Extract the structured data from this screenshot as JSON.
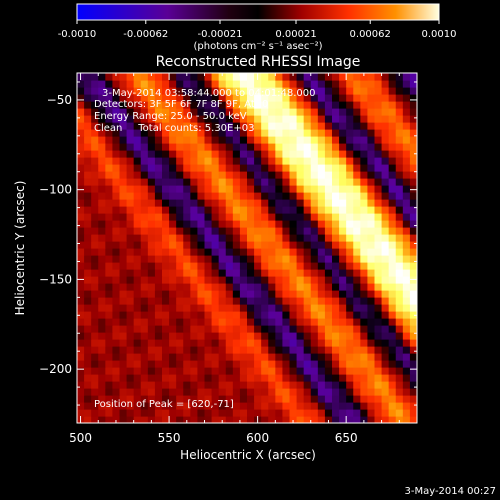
{
  "chart_data": {
    "type": "heatmap",
    "title": "Reconstructed RHESSI Image",
    "xlabel": "Heliocentric X (arcsec)",
    "ylabel": "Heliocentric Y (arcsec)",
    "xlim": [
      498,
      690
    ],
    "ylim": [
      -230,
      -35
    ],
    "xticks": [
      500,
      550,
      600,
      650
    ],
    "yticks": [
      -50,
      -100,
      -150,
      -200
    ],
    "colorbar": {
      "ticks": [
        "-0.0010",
        "-0.00062",
        "-0.00021",
        "0.00021",
        "0.00062",
        "0.0010"
      ],
      "range": [
        -0.001,
        0.001
      ],
      "units_label": "(photons cm⁻² s⁻¹ asec⁻²)"
    },
    "annotations": [
      "3-May-2014 03:58:44.000 to 04:01:48.000",
      "Detectors: 3F 5F 6F 7F 8F 9F, Att 0",
      "Energy Range: 25.0 - 50.0 keV",
      "Clean     Total counts: 5.30E+03"
    ],
    "peak_label": "Position of Peak = [620,-71]",
    "peak": {
      "x": 620,
      "y": -71
    },
    "timestamp": "3-May-2014 00:27",
    "bands": [
      {
        "center_offset": 0,
        "width": 26,
        "amplitude": 0.00095
      },
      {
        "center_offset": -60,
        "width": 14,
        "amplitude": 0.00045
      },
      {
        "center_offset": 62,
        "width": 14,
        "amplitude": 0.0004
      },
      {
        "center_offset": 120,
        "width": 12,
        "amplitude": 0.0008
      },
      {
        "center_offset": -115,
        "width": 12,
        "amplitude": 0.0003
      },
      {
        "center_offset": -32,
        "width": 12,
        "amplitude": -0.0006
      },
      {
        "center_offset": 34,
        "width": 12,
        "amplitude": -0.00065
      },
      {
        "center_offset": 92,
        "width": 12,
        "amplitude": -0.0005
      },
      {
        "center_offset": -90,
        "width": 12,
        "amplitude": -0.0005
      }
    ],
    "colormap": [
      "#0000ff",
      "#3a00c8",
      "#5a0096",
      "#000000",
      "#a00000",
      "#ff3000",
      "#ff9000",
      "#ffff60",
      "#ffffff"
    ]
  }
}
